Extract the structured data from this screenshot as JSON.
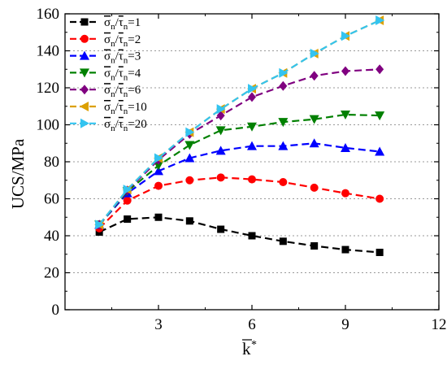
{
  "chart_data": {
    "type": "line",
    "ylabel": "UCS/MPa",
    "xlabel": "k",
    "xlabel_sup": "*",
    "xlim": [
      0,
      12
    ],
    "ylim": [
      0,
      160
    ],
    "x_ticks": [
      3,
      6,
      9,
      12
    ],
    "y_ticks": [
      0,
      20,
      40,
      60,
      80,
      100,
      120,
      140,
      160
    ],
    "x_tick_labels": [
      "3",
      "6",
      "9",
      "12"
    ],
    "y_tick_labels": [
      "0",
      "20",
      "40",
      "60",
      "80",
      "100",
      "120",
      "140",
      "160"
    ],
    "grid": "horizontal dotted",
    "legend_position": "top-left",
    "legend_label_prefix": "σn/τn",
    "series": [
      {
        "name": "1",
        "color": "#000000",
        "marker": "square",
        "x": [
          1.1,
          2,
          3,
          4,
          5,
          6,
          7,
          8,
          9,
          10.1
        ],
        "y": [
          42,
          49,
          50,
          48,
          43.5,
          40,
          37,
          34.5,
          32.5,
          31
        ]
      },
      {
        "name": "2",
        "color": "#ff0000",
        "marker": "circle",
        "x": [
          1.1,
          2,
          3,
          4,
          5,
          6,
          7,
          8,
          9,
          10.1
        ],
        "y": [
          44,
          59,
          67,
          70,
          71.5,
          70.5,
          69,
          66,
          63,
          60
        ]
      },
      {
        "name": "3",
        "color": "#0000ff",
        "marker": "triangle-up",
        "x": [
          1.1,
          2,
          3,
          4,
          5,
          6,
          7,
          8,
          9,
          10.1
        ],
        "y": [
          46,
          63,
          75,
          82,
          86,
          88.5,
          88.5,
          90,
          87.5,
          85.5
        ]
      },
      {
        "name": "4",
        "color": "#008000",
        "marker": "triangle-down",
        "x": [
          1.1,
          2,
          3,
          4,
          5,
          6,
          7,
          8,
          9,
          10.1
        ],
        "y": [
          46,
          64,
          78,
          89,
          97,
          99,
          101.5,
          103,
          105.5,
          105
        ]
      },
      {
        "name": "6",
        "color": "#800080",
        "marker": "diamond",
        "x": [
          1.1,
          2,
          3,
          4,
          5,
          6,
          7,
          8,
          9,
          10.1
        ],
        "y": [
          46,
          64.5,
          81,
          95,
          105,
          115,
          121,
          126.5,
          129,
          130
        ]
      },
      {
        "name": "10",
        "color": "#dca000",
        "marker": "triangle-left",
        "x": [
          1.1,
          2,
          3,
          4,
          5,
          6,
          7,
          8,
          9,
          10.1
        ],
        "y": [
          46,
          65,
          82,
          96,
          108.5,
          119.5,
          128,
          138.5,
          148,
          156.5
        ]
      },
      {
        "name": "20",
        "color": "#33c4f0",
        "marker": "triangle-right",
        "x": [
          1.1,
          2,
          3,
          4,
          5,
          6,
          7,
          8,
          9,
          10.1
        ],
        "y": [
          46,
          65,
          82,
          96,
          108.5,
          119.5,
          128,
          138.5,
          148,
          156.5
        ]
      }
    ]
  }
}
